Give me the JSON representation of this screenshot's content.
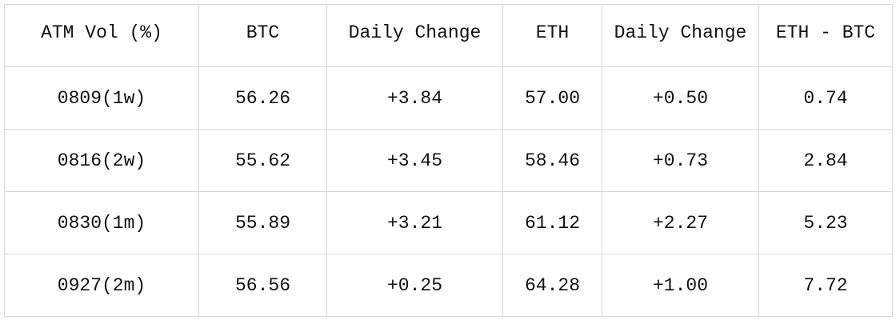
{
  "table": {
    "header": [
      "ATM Vol (%)",
      "BTC",
      "Daily Change",
      "ETH",
      "Daily Change",
      "ETH - BTC"
    ],
    "rows": [
      [
        "0809(1w)",
        "56.26",
        "+3.84",
        "57.00",
        "+0.50",
        "0.74"
      ],
      [
        "0816(2w)",
        "55.62",
        "+3.45",
        "58.46",
        "+0.73",
        "2.84"
      ],
      [
        "0830(1m)",
        "55.89",
        "+3.21",
        "61.12",
        "+2.27",
        "5.23"
      ],
      [
        "0927(2m)",
        "56.56",
        "+0.25",
        "64.28",
        "+1.00",
        "7.72"
      ]
    ]
  }
}
